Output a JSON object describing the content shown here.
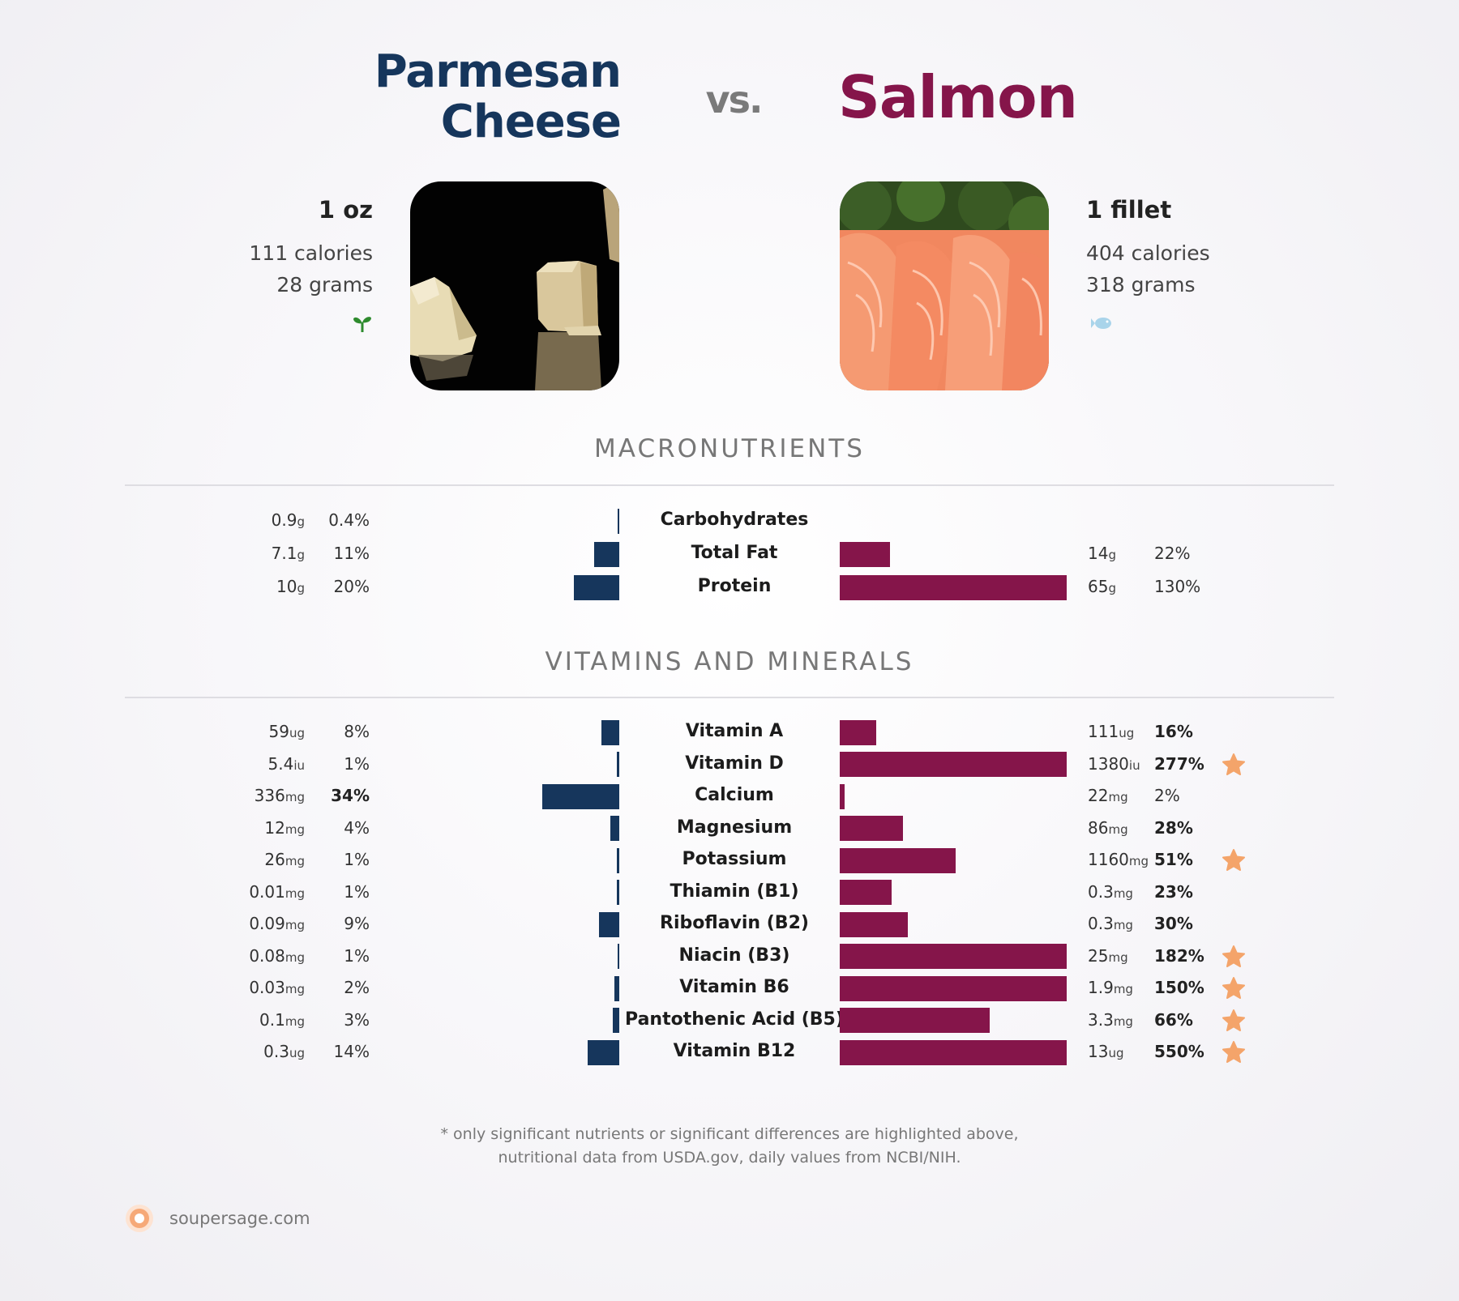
{
  "header": {
    "left_title_line1": "Parmesan",
    "left_title_line2": "Cheese",
    "vs": "vs.",
    "right_title": "Salmon"
  },
  "left_food": {
    "serving": "1 oz",
    "calories": "111 calories",
    "grams": "28 grams",
    "diet_icon": "sprout-icon",
    "diet_icon_color": "#2e8b2e"
  },
  "right_food": {
    "serving": "1 fillet",
    "calories": "404 calories",
    "grams": "318 grams",
    "diet_icon": "fish-icon",
    "diet_icon_color": "#a9d4ea"
  },
  "colors": {
    "left": "#16365c",
    "right": "#85154a",
    "star": "#f4a46a"
  },
  "sections": {
    "macros": "MACRONUTRIENTS",
    "vitamins": "VITAMINS AND MINERALS"
  },
  "chart_data": {
    "type": "bar",
    "series": [
      {
        "name": "Parmesan Cheese"
      },
      {
        "name": "Salmon"
      }
    ],
    "macronutrients": [
      {
        "name": "Carbohydrates",
        "left_amount": "0.9",
        "left_unit": "g",
        "left_pct": "0.4%",
        "left_val": 0.4,
        "left_bold": false,
        "right_amount": "",
        "right_unit": "",
        "right_pct": "",
        "right_val": 0,
        "right_bold": false,
        "star": false
      },
      {
        "name": "Total Fat",
        "left_amount": "7.1",
        "left_unit": "g",
        "left_pct": "11%",
        "left_val": 11,
        "left_bold": false,
        "right_amount": "14",
        "right_unit": "g",
        "right_pct": "22%",
        "right_val": 22,
        "right_bold": false,
        "star": false
      },
      {
        "name": "Protein",
        "left_amount": "10",
        "left_unit": "g",
        "left_pct": "20%",
        "left_val": 20,
        "left_bold": false,
        "right_amount": "65",
        "right_unit": "g",
        "right_pct": "130%",
        "right_val": 130,
        "right_bold": false,
        "star": false
      }
    ],
    "vitamins": [
      {
        "name": "Vitamin A",
        "left_amount": "59",
        "left_unit": "ug",
        "left_pct": "8%",
        "left_val": 8,
        "left_bold": false,
        "right_amount": "111",
        "right_unit": "ug",
        "right_pct": "16%",
        "right_val": 16,
        "right_bold": true,
        "star": false
      },
      {
        "name": "Vitamin D",
        "left_amount": "5.4",
        "left_unit": "iu",
        "left_pct": "1%",
        "left_val": 1,
        "left_bold": false,
        "right_amount": "1380",
        "right_unit": "iu",
        "right_pct": "277%",
        "right_val": 277,
        "right_bold": true,
        "star": true
      },
      {
        "name": "Calcium",
        "left_amount": "336",
        "left_unit": "mg",
        "left_pct": "34%",
        "left_val": 34,
        "left_bold": true,
        "right_amount": "22",
        "right_unit": "mg",
        "right_pct": "2%",
        "right_val": 2,
        "right_bold": false,
        "star": false
      },
      {
        "name": "Magnesium",
        "left_amount": "12",
        "left_unit": "mg",
        "left_pct": "4%",
        "left_val": 4,
        "left_bold": false,
        "right_amount": "86",
        "right_unit": "mg",
        "right_pct": "28%",
        "right_val": 28,
        "right_bold": true,
        "star": false
      },
      {
        "name": "Potassium",
        "left_amount": "26",
        "left_unit": "mg",
        "left_pct": "1%",
        "left_val": 1,
        "left_bold": false,
        "right_amount": "1160",
        "right_unit": "mg",
        "right_pct": "51%",
        "right_val": 51,
        "right_bold": true,
        "star": true
      },
      {
        "name": "Thiamin (B1)",
        "left_amount": "0.01",
        "left_unit": "mg",
        "left_pct": "1%",
        "left_val": 1,
        "left_bold": false,
        "right_amount": "0.3",
        "right_unit": "mg",
        "right_pct": "23%",
        "right_val": 23,
        "right_bold": true,
        "star": false
      },
      {
        "name": "Riboflavin (B2)",
        "left_amount": "0.09",
        "left_unit": "mg",
        "left_pct": "9%",
        "left_val": 9,
        "left_bold": false,
        "right_amount": "0.3",
        "right_unit": "mg",
        "right_pct": "30%",
        "right_val": 30,
        "right_bold": true,
        "star": false
      },
      {
        "name": "Niacin (B3)",
        "left_amount": "0.08",
        "left_unit": "mg",
        "left_pct": "1%",
        "left_val": 0.5,
        "left_bold": false,
        "right_amount": "25",
        "right_unit": "mg",
        "right_pct": "182%",
        "right_val": 182,
        "right_bold": true,
        "star": true
      },
      {
        "name": "Vitamin B6",
        "left_amount": "0.03",
        "left_unit": "mg",
        "left_pct": "2%",
        "left_val": 2,
        "left_bold": false,
        "right_amount": "1.9",
        "right_unit": "mg",
        "right_pct": "150%",
        "right_val": 150,
        "right_bold": true,
        "star": true
      },
      {
        "name": "Pantothenic Acid (B5)",
        "left_amount": "0.1",
        "left_unit": "mg",
        "left_pct": "3%",
        "left_val": 3,
        "left_bold": false,
        "right_amount": "3.3",
        "right_unit": "mg",
        "right_pct": "66%",
        "right_val": 66,
        "right_bold": true,
        "star": true
      },
      {
        "name": "Vitamin B12",
        "left_amount": "0.3",
        "left_unit": "ug",
        "left_pct": "14%",
        "left_val": 14,
        "left_bold": false,
        "right_amount": "13",
        "right_unit": "ug",
        "right_pct": "550%",
        "right_val": 550,
        "right_bold": true,
        "star": true
      }
    ]
  },
  "footer": {
    "note_line1": "* only significant nutrients or significant differences are highlighted above,",
    "note_line2": "nutritional data from USDA.gov, daily values from NCBI/NIH.",
    "brand": "soupersage.com",
    "brand_icon": "soupersage-logo-icon"
  }
}
